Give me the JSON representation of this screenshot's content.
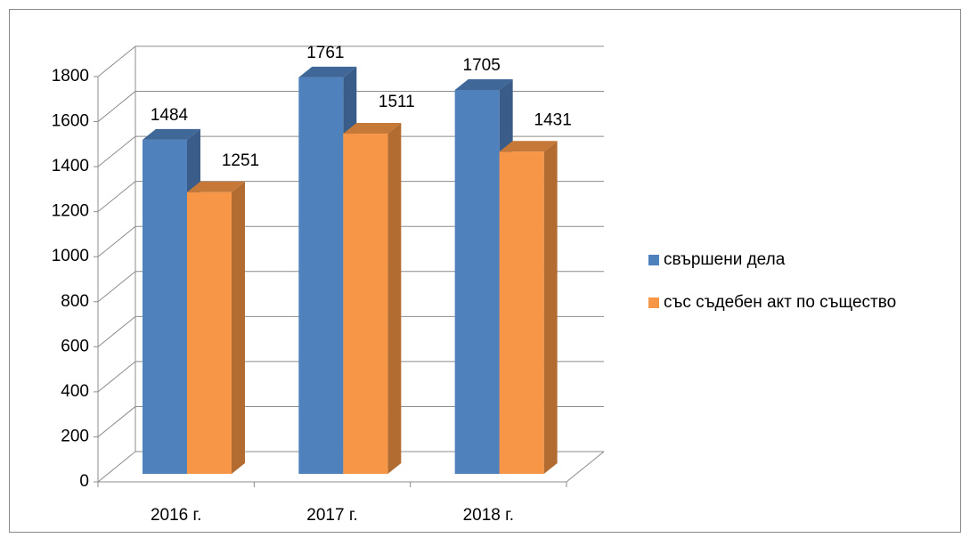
{
  "chart_data": {
    "type": "bar3d",
    "categories": [
      "2016 г.",
      "2017 г.",
      "2018 г."
    ],
    "series": [
      {
        "name": "свършени дела",
        "color": "#4f81bd",
        "values": [
          1484,
          1761,
          1705
        ]
      },
      {
        "name": "със съдебен акт по същество",
        "color": "#f79646",
        "values": [
          1251,
          1511,
          1431
        ]
      }
    ],
    "ylim": [
      0,
      1800
    ],
    "yticks": [
      0,
      200,
      400,
      600,
      800,
      1000,
      1200,
      1400,
      1600,
      1800
    ],
    "grid": true,
    "legend": "right"
  }
}
